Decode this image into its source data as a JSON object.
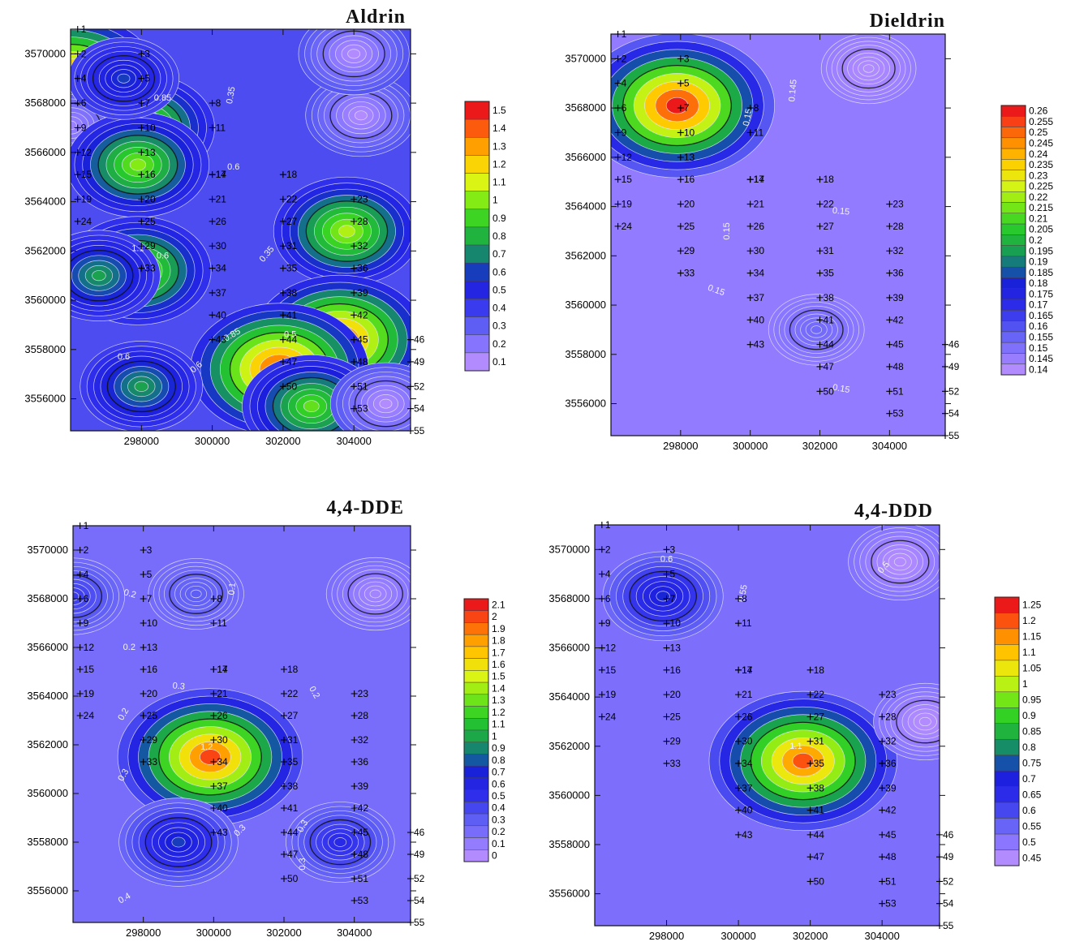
{
  "chart_data": [
    {
      "type": "heatmap",
      "title": "Aldrin",
      "xlabel": "",
      "ylabel": "",
      "xlim": [
        296000,
        305600
      ],
      "ylim": [
        3554700,
        3571000
      ],
      "x_ticks": [
        298000,
        300000,
        302000,
        304000
      ],
      "x_tick_labels": [
        "298000",
        "300000",
        "302000",
        "304000"
      ],
      "y_ticks": [
        3556000,
        3558000,
        3560000,
        3562000,
        3564000,
        3566000,
        3568000,
        3570000
      ],
      "y_tick_labels": [
        "3556000",
        "3558000",
        "3560000",
        "3562000",
        "3564000",
        "3566000",
        "3568000",
        "3570000"
      ],
      "colorbar": {
        "min": 0.1,
        "max": 1.5,
        "step": 0.1,
        "labels": [
          "1.5",
          "1.4",
          "1.3",
          "1.2",
          "1.1",
          "1",
          "0.9",
          "0.8",
          "0.7",
          "0.6",
          "0.5",
          "0.4",
          "0.3",
          "0.2",
          "0.1"
        ]
      },
      "background": 0.35,
      "hotspots": [
        {
          "x": 296000,
          "y": 3568900,
          "value": 1.45
        },
        {
          "x": 298000,
          "y": 3567000,
          "value": 1.05
        },
        {
          "x": 296000,
          "y": 3567100,
          "value": 0.15
        },
        {
          "x": 297900,
          "y": 3565500,
          "value": 1.0
        },
        {
          "x": 297500,
          "y": 3569000,
          "value": 0.6
        },
        {
          "x": 297900,
          "y": 3561200,
          "value": 1.05
        },
        {
          "x": 296800,
          "y": 3561000,
          "value": 0.75
        },
        {
          "x": 303800,
          "y": 3562800,
          "value": 1.05
        },
        {
          "x": 303600,
          "y": 3558400,
          "value": 1.4
        },
        {
          "x": 301900,
          "y": 3557200,
          "value": 1.45
        },
        {
          "x": 302800,
          "y": 3555700,
          "value": 0.95
        },
        {
          "x": 298000,
          "y": 3556500,
          "value": 0.75
        },
        {
          "x": 304900,
          "y": 3555800,
          "value": 0.1
        },
        {
          "x": 304200,
          "y": 3567500,
          "value": 0.1
        },
        {
          "x": 304000,
          "y": 3570000,
          "value": 0.1
        }
      ],
      "contour_labels": [
        "0.35",
        "0.6",
        "0.6",
        "0.6",
        "0.85",
        "0.85",
        "0.5",
        "0.6",
        "1.1",
        "0.35"
      ]
    },
    {
      "type": "heatmap",
      "title": "Dieldrin",
      "xlabel": "",
      "ylabel": "",
      "xlim": [
        296000,
        305600
      ],
      "ylim": [
        3554700,
        3571000
      ],
      "x_ticks": [
        298000,
        300000,
        302000,
        304000
      ],
      "x_tick_labels": [
        "298000",
        "300000",
        "302000",
        "304000"
      ],
      "y_ticks": [
        3556000,
        3558000,
        3560000,
        3562000,
        3564000,
        3566000,
        3568000,
        3570000
      ],
      "y_tick_labels": [
        "3556000",
        "3558000",
        "3560000",
        "3562000",
        "3564000",
        "3566000",
        "3568000",
        "3570000"
      ],
      "colorbar": {
        "min": 0.14,
        "max": 0.26,
        "step": 0.005,
        "labels": [
          "0.26",
          "0.255",
          "0.25",
          "0.245",
          "0.24",
          "0.235",
          "0.23",
          "0.225",
          "0.22",
          "0.215",
          "0.21",
          "0.205",
          "0.2",
          "0.195",
          "0.19",
          "0.185",
          "0.18",
          "0.175",
          "0.17",
          "0.165",
          "0.16",
          "0.155",
          "0.15",
          "0.145",
          "0.14"
        ]
      },
      "background": 0.146,
      "hotspots": [
        {
          "x": 297900,
          "y": 3568100,
          "value": 0.262
        },
        {
          "x": 303400,
          "y": 3569600,
          "value": 0.14
        },
        {
          "x": 301900,
          "y": 3559000,
          "value": 0.153
        }
      ],
      "contour_labels": [
        "0.145",
        "0.15",
        "0.15",
        "0.15",
        "0.15",
        "0.15"
      ]
    },
    {
      "type": "heatmap",
      "title": "4,4-DDE",
      "xlabel": "",
      "ylabel": "",
      "xlim": [
        296000,
        305600
      ],
      "ylim": [
        3554700,
        3571000
      ],
      "x_ticks": [
        298000,
        300000,
        302000,
        304000
      ],
      "x_tick_labels": [
        "298000",
        "300000",
        "302000",
        "304000"
      ],
      "y_ticks": [
        3556000,
        3558000,
        3560000,
        3562000,
        3564000,
        3566000,
        3568000,
        3570000
      ],
      "y_tick_labels": [
        "3556000",
        "3558000",
        "3560000",
        "3562000",
        "3564000",
        "3566000",
        "3568000",
        "3570000"
      ],
      "colorbar": {
        "min": 0,
        "max": 2.1,
        "step": 0.1,
        "labels": [
          "2.1",
          "2",
          "1.9",
          "1.8",
          "1.7",
          "1.6",
          "1.5",
          "1.4",
          "1.3",
          "1.2",
          "1.1",
          "1",
          "0.9",
          "0.8",
          "0.7",
          "0.6",
          "0.5",
          "0.4",
          "0.3",
          "0.2",
          "0.1",
          "0"
        ]
      },
      "background": 0.2,
      "hotspots": [
        {
          "x": 299900,
          "y": 3561500,
          "value": 2.0
        },
        {
          "x": 299000,
          "y": 3558000,
          "value": 0.75
        },
        {
          "x": 303600,
          "y": 3558000,
          "value": 0.55
        },
        {
          "x": 296000,
          "y": 3568100,
          "value": 0.45
        },
        {
          "x": 304600,
          "y": 3568200,
          "value": 0.05
        },
        {
          "x": 299500,
          "y": 3568200,
          "value": 0.3
        }
      ],
      "contour_labels": [
        "0.1",
        "0.2",
        "0.2",
        "0.3",
        "0.2",
        "0.2",
        "0.3",
        "0.3",
        "0.3",
        "0.4",
        "0.3",
        "1.2"
      ]
    },
    {
      "type": "heatmap",
      "title": "4,4-DDD",
      "xlabel": "",
      "ylabel": "",
      "xlim": [
        296000,
        305600
      ],
      "ylim": [
        3554700,
        3571000
      ],
      "x_ticks": [
        298000,
        300000,
        302000,
        304000
      ],
      "x_tick_labels": [
        "298000",
        "300000",
        "302000",
        "304000"
      ],
      "y_ticks": [
        3556000,
        3558000,
        3560000,
        3562000,
        3564000,
        3566000,
        3568000,
        3570000
      ],
      "y_tick_labels": [
        "3556000",
        "3558000",
        "3560000",
        "3562000",
        "3564000",
        "3566000",
        "3568000",
        "3570000"
      ],
      "colorbar": {
        "min": 0.45,
        "max": 1.25,
        "step": 0.05,
        "labels": [
          "1.25",
          "1.2",
          "1.15",
          "1.1",
          "1.05",
          "1",
          "0.95",
          "0.9",
          "0.85",
          "0.8",
          "0.75",
          "0.7",
          "0.65",
          "0.6",
          "0.55",
          "0.5",
          "0.45"
        ]
      },
      "background": 0.52,
      "hotspots": [
        {
          "x": 301800,
          "y": 3561400,
          "value": 1.2
        },
        {
          "x": 297900,
          "y": 3568100,
          "value": 0.72
        },
        {
          "x": 305200,
          "y": 3563000,
          "value": 0.44
        },
        {
          "x": 304500,
          "y": 3569500,
          "value": 0.44
        }
      ],
      "contour_labels": [
        "0.5",
        "0.55",
        "0.6",
        "1.1"
      ]
    }
  ],
  "stations": [
    {
      "id": "1",
      "x": 296200,
      "y": 3571000
    },
    {
      "id": "2",
      "x": 296200,
      "y": 3570000
    },
    {
      "id": "3",
      "x": 298000,
      "y": 3570000
    },
    {
      "id": "4",
      "x": 296200,
      "y": 3569000
    },
    {
      "id": "5",
      "x": 298000,
      "y": 3569000
    },
    {
      "id": "6",
      "x": 296200,
      "y": 3568000
    },
    {
      "id": "7",
      "x": 298000,
      "y": 3568000
    },
    {
      "id": "8",
      "x": 300000,
      "y": 3568000
    },
    {
      "id": "9",
      "x": 296200,
      "y": 3567000
    },
    {
      "id": "10",
      "x": 298000,
      "y": 3567000
    },
    {
      "id": "11",
      "x": 300000,
      "y": 3567000
    },
    {
      "id": "12",
      "x": 296200,
      "y": 3566000
    },
    {
      "id": "13",
      "x": 298000,
      "y": 3566000
    },
    {
      "id": "14",
      "x": 300000,
      "y": 3565100
    },
    {
      "id": "15",
      "x": 296200,
      "y": 3565100
    },
    {
      "id": "16",
      "x": 298000,
      "y": 3565100
    },
    {
      "id": "17",
      "x": 300000,
      "y": 3565100
    },
    {
      "id": "18",
      "x": 302000,
      "y": 3565100
    },
    {
      "id": "19",
      "x": 296200,
      "y": 3564100
    },
    {
      "id": "20",
      "x": 298000,
      "y": 3564100
    },
    {
      "id": "21",
      "x": 300000,
      "y": 3564100
    },
    {
      "id": "22",
      "x": 302000,
      "y": 3564100
    },
    {
      "id": "23",
      "x": 304000,
      "y": 3564100
    },
    {
      "id": "24",
      "x": 296200,
      "y": 3563200
    },
    {
      "id": "25",
      "x": 298000,
      "y": 3563200
    },
    {
      "id": "26",
      "x": 300000,
      "y": 3563200
    },
    {
      "id": "27",
      "x": 302000,
      "y": 3563200
    },
    {
      "id": "28",
      "x": 304000,
      "y": 3563200
    },
    {
      "id": "29",
      "x": 298000,
      "y": 3562200
    },
    {
      "id": "30",
      "x": 300000,
      "y": 3562200
    },
    {
      "id": "31",
      "x": 302000,
      "y": 3562200
    },
    {
      "id": "32",
      "x": 304000,
      "y": 3562200
    },
    {
      "id": "33",
      "x": 298000,
      "y": 3561300
    },
    {
      "id": "34",
      "x": 300000,
      "y": 3561300
    },
    {
      "id": "35",
      "x": 302000,
      "y": 3561300
    },
    {
      "id": "36",
      "x": 304000,
      "y": 3561300
    },
    {
      "id": "37",
      "x": 300000,
      "y": 3560300
    },
    {
      "id": "38",
      "x": 302000,
      "y": 3560300
    },
    {
      "id": "39",
      "x": 304000,
      "y": 3560300
    },
    {
      "id": "40",
      "x": 300000,
      "y": 3559400
    },
    {
      "id": "41",
      "x": 302000,
      "y": 3559400
    },
    {
      "id": "42",
      "x": 304000,
      "y": 3559400
    },
    {
      "id": "43",
      "x": 300000,
      "y": 3558400
    },
    {
      "id": "44",
      "x": 302000,
      "y": 3558400
    },
    {
      "id": "45",
      "x": 304000,
      "y": 3558400
    },
    {
      "id": "46",
      "x": 305600,
      "y": 3558400
    },
    {
      "id": "47",
      "x": 302000,
      "y": 3557500
    },
    {
      "id": "48",
      "x": 304000,
      "y": 3557500
    },
    {
      "id": "49",
      "x": 305600,
      "y": 3557500
    },
    {
      "id": "50",
      "x": 302000,
      "y": 3556500
    },
    {
      "id": "51",
      "x": 304000,
      "y": 3556500
    },
    {
      "id": "52",
      "x": 305600,
      "y": 3556500
    },
    {
      "id": "53",
      "x": 304000,
      "y": 3555600
    },
    {
      "id": "54",
      "x": 305600,
      "y": 3555600
    },
    {
      "id": "55",
      "x": 305600,
      "y": 3554700
    }
  ]
}
